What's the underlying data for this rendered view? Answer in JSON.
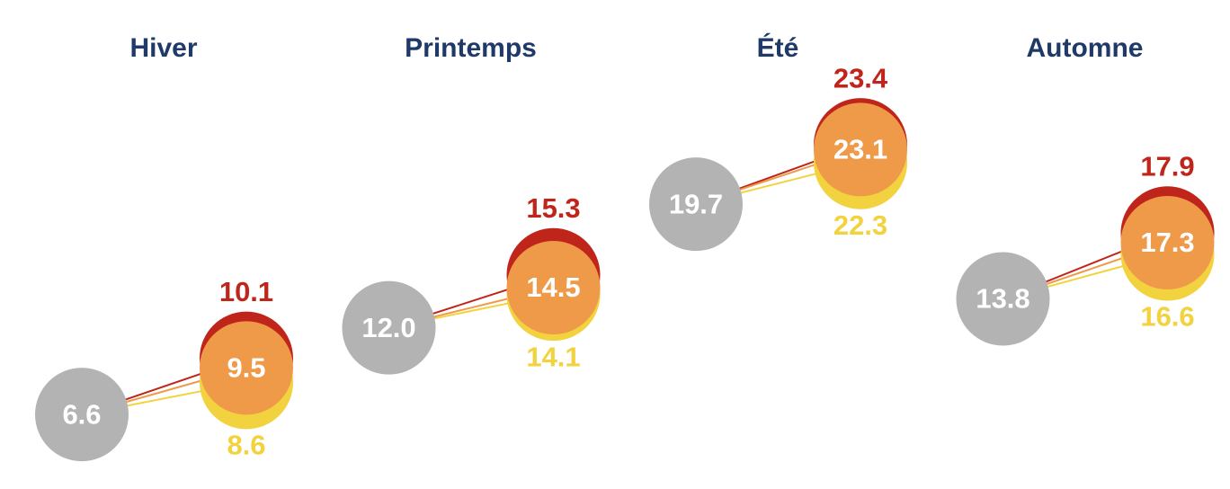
{
  "chart_data": {
    "type": "dumbbell",
    "categories": [
      "Hiver",
      "Printemps",
      "Été",
      "Automne"
    ],
    "series": [
      {
        "color": "#b3b3b3",
        "values": [
          6.6,
          12.0,
          19.7,
          13.8
        ],
        "value_labels": [
          "6.6",
          "12.0",
          "19.7",
          "13.8"
        ]
      },
      {
        "color": "#f2d33f",
        "values": [
          8.6,
          14.1,
          22.3,
          16.6
        ]
      },
      {
        "color": "#c0251b",
        "values": [
          10.1,
          15.3,
          23.4,
          17.9
        ]
      },
      {
        "color": "#ee9a48",
        "values": [
          9.5,
          14.5,
          23.1,
          17.3
        ]
      }
    ]
  }
}
